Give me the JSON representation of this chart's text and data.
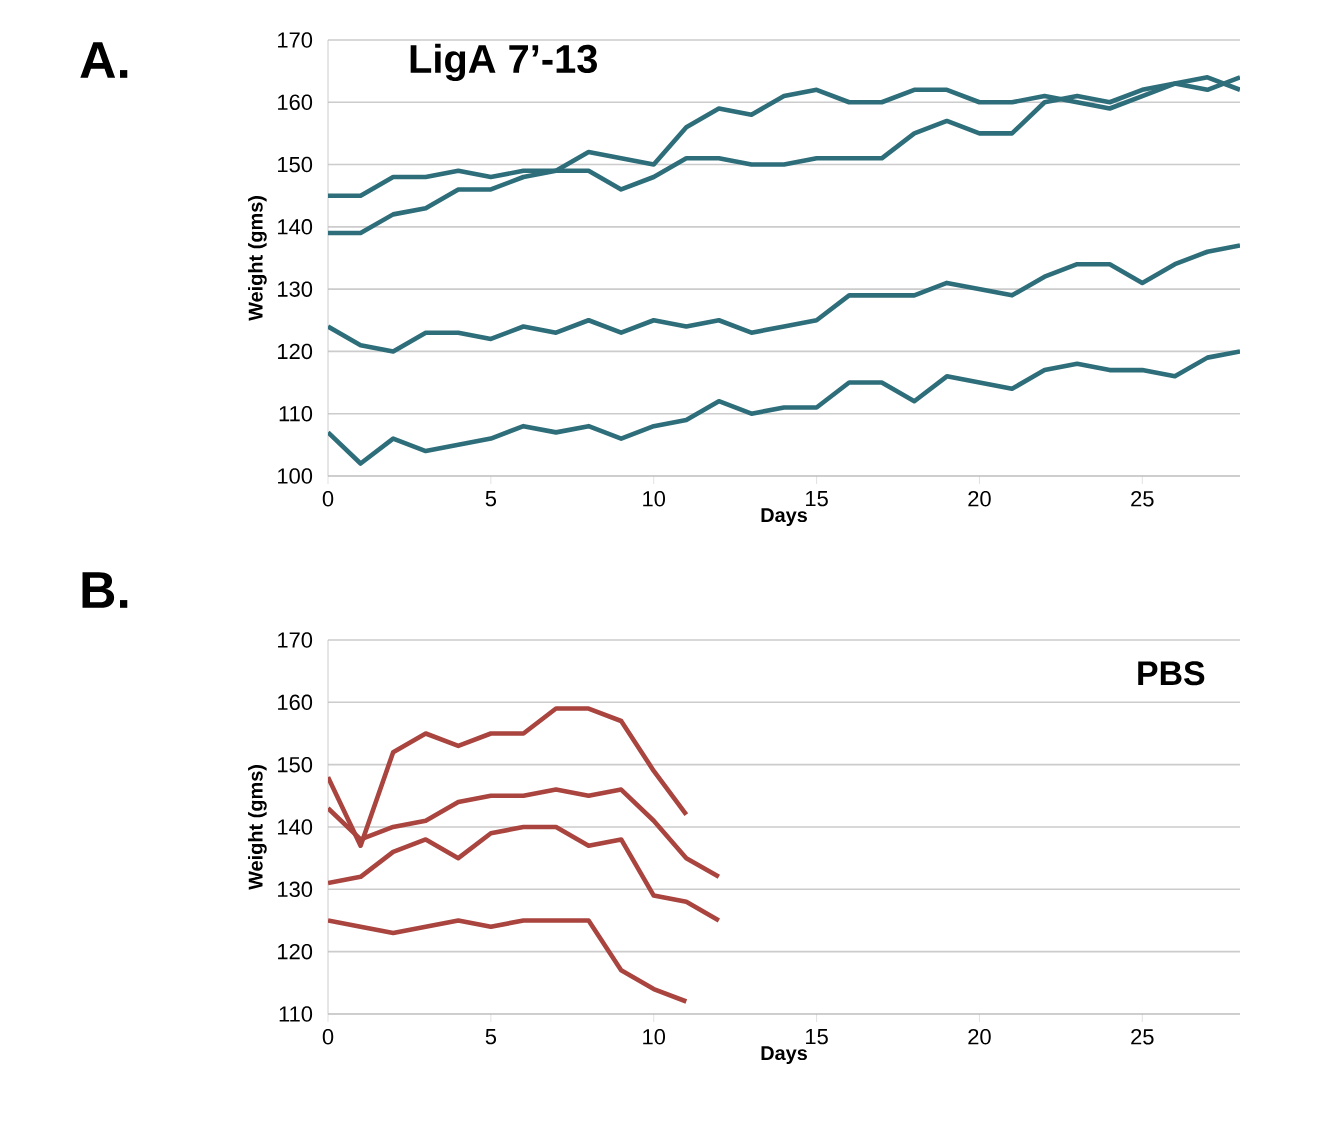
{
  "chart_data": [
    {
      "type": "line",
      "title": "LigA 7’-13",
      "xlabel": "Days",
      "ylabel": "Weight (gms)",
      "annotations": [
        "A."
      ],
      "grid": "y",
      "xlim": [
        0,
        28
      ],
      "xticks": [
        0,
        5,
        10,
        15,
        20,
        25
      ],
      "ylim": [
        100,
        170
      ],
      "yticks": [
        100,
        110,
        120,
        130,
        140,
        150,
        160,
        170
      ],
      "x": [
        0,
        1,
        2,
        3,
        4,
        5,
        6,
        7,
        8,
        9,
        10,
        11,
        12,
        13,
        14,
        15,
        16,
        17,
        18,
        19,
        20,
        21,
        22,
        23,
        24,
        25,
        26,
        27,
        28
      ],
      "series": [
        {
          "color": "#2e6e7a",
          "values": [
            145,
            145,
            148,
            148,
            149,
            148,
            149,
            149,
            152,
            151,
            150,
            156,
            159,
            158,
            161,
            162,
            160,
            160,
            162,
            162,
            160,
            160,
            161,
            160,
            159,
            161,
            163,
            162,
            164
          ]
        },
        {
          "color": "#2e6e7a",
          "values": [
            139,
            139,
            142,
            143,
            146,
            146,
            148,
            149,
            149,
            146,
            148,
            151,
            151,
            150,
            150,
            151,
            151,
            151,
            155,
            157,
            155,
            155,
            160,
            161,
            160,
            162,
            163,
            164,
            162
          ]
        },
        {
          "color": "#2e6e7a",
          "values": [
            124,
            121,
            120,
            123,
            123,
            122,
            124,
            123,
            125,
            123,
            125,
            124,
            125,
            123,
            124,
            125,
            129,
            129,
            129,
            131,
            130,
            129,
            132,
            134,
            134,
            131,
            134,
            136,
            137
          ]
        },
        {
          "color": "#2e6e7a",
          "values": [
            107,
            102,
            106,
            104,
            105,
            106,
            108,
            107,
            108,
            106,
            108,
            109,
            112,
            110,
            111,
            111,
            115,
            115,
            112,
            116,
            115,
            114,
            117,
            118,
            117,
            117,
            116,
            119,
            120
          ]
        }
      ]
    },
    {
      "type": "line",
      "title": "PBS",
      "xlabel": "Days",
      "ylabel": "Weight (gms)",
      "annotations": [
        "B."
      ],
      "grid": "y",
      "xlim": [
        0,
        28
      ],
      "xticks": [
        0,
        5,
        10,
        15,
        20,
        25
      ],
      "ylim": [
        110,
        170
      ],
      "yticks": [
        110,
        120,
        130,
        140,
        150,
        160,
        170
      ],
      "series": [
        {
          "color": "#a9443f",
          "x": [
            0,
            1,
            2,
            3,
            4,
            5,
            6,
            7,
            8,
            9,
            10,
            11
          ],
          "values": [
            148,
            137,
            152,
            155,
            153,
            155,
            155,
            159,
            159,
            157,
            149,
            142
          ]
        },
        {
          "color": "#a9443f",
          "x": [
            0,
            1,
            2,
            3,
            4,
            5,
            6,
            7,
            8,
            9,
            10,
            11,
            12
          ],
          "values": [
            143,
            138,
            140,
            141,
            144,
            145,
            145,
            146,
            145,
            146,
            141,
            135,
            132
          ]
        },
        {
          "color": "#a9443f",
          "x": [
            0,
            1,
            2,
            3,
            4,
            5,
            6,
            7,
            8,
            9,
            10,
            11,
            12
          ],
          "values": [
            131,
            132,
            136,
            138,
            135,
            139,
            140,
            140,
            137,
            138,
            129,
            128,
            125
          ]
        },
        {
          "color": "#a9443f",
          "x": [
            0,
            1,
            2,
            3,
            4,
            5,
            6,
            7,
            8,
            9,
            10,
            11
          ],
          "values": [
            125,
            124,
            123,
            124,
            125,
            124,
            125,
            125,
            125,
            117,
            114,
            112
          ]
        }
      ]
    }
  ]
}
